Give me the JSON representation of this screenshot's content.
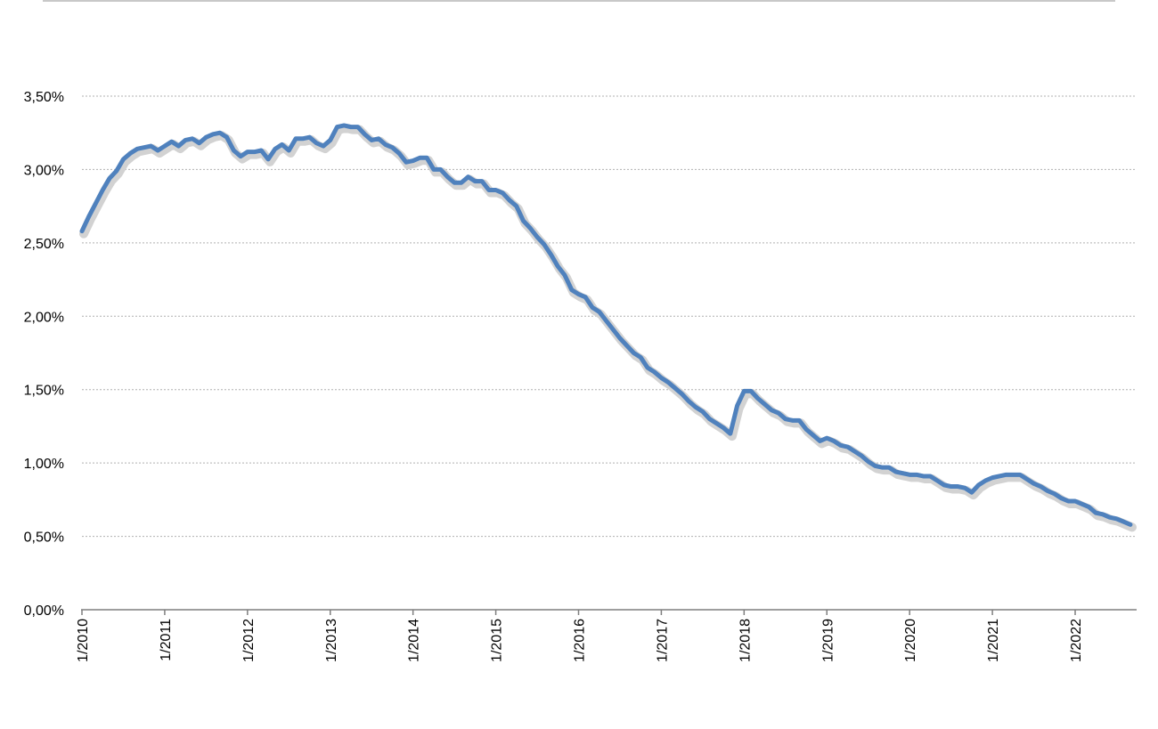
{
  "chart_data": {
    "type": "line",
    "title": "",
    "xlabel": "",
    "ylabel": "",
    "ylim": [
      0,
      3.5
    ],
    "grid": true,
    "y_ticks": [
      "0,00%",
      "0,50%",
      "1,00%",
      "1,50%",
      "2,00%",
      "2,50%",
      "3,00%",
      "3,50%"
    ],
    "x_ticks": [
      "1/2010",
      "1/2011",
      "1/2012",
      "1/2013",
      "1/2014",
      "1/2015",
      "1/2016",
      "1/2017",
      "1/2018",
      "1/2019",
      "1/2020",
      "1/2021",
      "1/2022"
    ],
    "start": "2010-01",
    "frequency": "monthly",
    "series": [
      {
        "color": "#4f81bd",
        "values": [
          2.58,
          2.68,
          2.77,
          2.86,
          2.94,
          2.99,
          3.07,
          3.11,
          3.14,
          3.15,
          3.16,
          3.13,
          3.16,
          3.19,
          3.16,
          3.2,
          3.21,
          3.18,
          3.22,
          3.24,
          3.25,
          3.22,
          3.13,
          3.09,
          3.12,
          3.12,
          3.13,
          3.07,
          3.14,
          3.17,
          3.13,
          3.21,
          3.21,
          3.22,
          3.18,
          3.16,
          3.2,
          3.29,
          3.3,
          3.29,
          3.29,
          3.24,
          3.2,
          3.21,
          3.17,
          3.15,
          3.11,
          3.05,
          3.06,
          3.08,
          3.08,
          3.0,
          3.0,
          2.95,
          2.91,
          2.91,
          2.95,
          2.92,
          2.92,
          2.86,
          2.86,
          2.84,
          2.79,
          2.75,
          2.65,
          2.6,
          2.54,
          2.49,
          2.42,
          2.34,
          2.28,
          2.18,
          2.15,
          2.13,
          2.06,
          2.03,
          1.97,
          1.91,
          1.85,
          1.8,
          1.75,
          1.72,
          1.65,
          1.62,
          1.58,
          1.55,
          1.51,
          1.47,
          1.42,
          1.38,
          1.35,
          1.3,
          1.27,
          1.24,
          1.2,
          1.39,
          1.49,
          1.49,
          1.44,
          1.4,
          1.36,
          1.34,
          1.3,
          1.29,
          1.29,
          1.23,
          1.19,
          1.15,
          1.17,
          1.15,
          1.12,
          1.11,
          1.08,
          1.05,
          1.01,
          0.98,
          0.97,
          0.97,
          0.94,
          0.93,
          0.92,
          0.92,
          0.91,
          0.91,
          0.88,
          0.85,
          0.84,
          0.84,
          0.83,
          0.8,
          0.85,
          0.88,
          0.9,
          0.91,
          0.92,
          0.92,
          0.92,
          0.89,
          0.86,
          0.84,
          0.81,
          0.79,
          0.76,
          0.74,
          0.74,
          0.72,
          0.7,
          0.66,
          0.65,
          0.63,
          0.62,
          0.6,
          0.58
        ]
      }
    ]
  }
}
